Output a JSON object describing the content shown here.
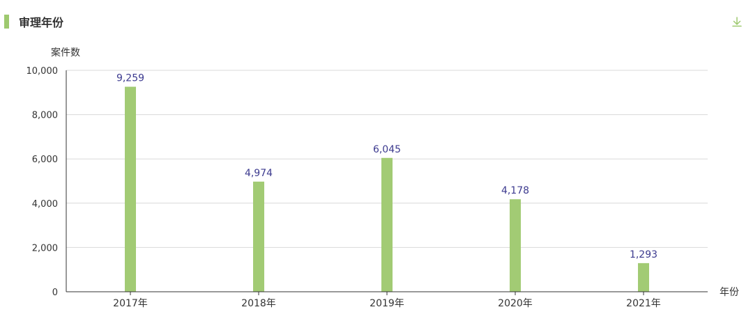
{
  "header": {
    "title": "审理年份",
    "download_icon": "download-icon"
  },
  "colors": {
    "accent": "#9ec96f",
    "bar": "#a2cb74",
    "value_label": "#3c3a8f",
    "axis_text": "#333333",
    "grid": "#d9d9d9",
    "axis_line": "#333333"
  },
  "chart_data": {
    "type": "bar",
    "categories": [
      "2017年",
      "2018年",
      "2019年",
      "2020年",
      "2021年"
    ],
    "values": [
      9259,
      4974,
      6045,
      4178,
      1293
    ],
    "value_labels": [
      "9,259",
      "4,974",
      "6,045",
      "4,178",
      "1,293"
    ],
    "title": "",
    "xlabel": "年份",
    "ylabel": "案件数",
    "ylim": [
      0,
      10000
    ],
    "yticks": [
      0,
      2000,
      4000,
      6000,
      8000,
      10000
    ],
    "ytick_labels": [
      "0",
      "2,000",
      "4,000",
      "6,000",
      "8,000",
      "10,000"
    ],
    "grid": true,
    "legend": "none"
  }
}
